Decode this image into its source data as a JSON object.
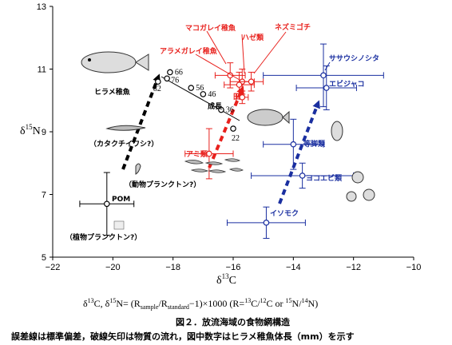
{
  "chart_data": {
    "type": "scatter",
    "title": "",
    "xlabel": "δ13C",
    "ylabel": "δ15N",
    "xlim": [
      -22,
      -10
    ],
    "ylim": [
      5,
      13
    ],
    "x_ticks": [
      "−22",
      "−20",
      "−18",
      "−16",
      "−14",
      "−12",
      "−10"
    ],
    "y_ticks": [
      "5",
      "7",
      "9",
      "11",
      "13"
    ],
    "groups": [
      {
        "color": "#000000",
        "points": [
          {
            "name": "POM",
            "x": -20.2,
            "y": 6.7,
            "xerr": 0.9,
            "yerr": 1.0
          },
          {
            "name": "82",
            "x": -18.5,
            "y": 10.6
          },
          {
            "name": "66",
            "x": -18.1,
            "y": 10.9
          },
          {
            "name": "76",
            "x": -18.2,
            "y": 10.7
          },
          {
            "name": "56",
            "x": -17.4,
            "y": 10.4
          },
          {
            "name": "46",
            "x": -17.0,
            "y": 10.2
          },
          {
            "name": "36",
            "x": -16.4,
            "y": 9.7
          },
          {
            "name": "22",
            "x": -16.0,
            "y": 9.1
          }
        ]
      },
      {
        "color": "#e8211d",
        "points": [
          {
            "name": "アミ類",
            "x": -16.8,
            "y": 8.3,
            "xerr": 0.8,
            "yerr": 0.8
          },
          {
            "name": "マコガレイ稚魚",
            "x": -16.1,
            "y": 10.8,
            "xerr": 0.5,
            "yerr": 0.4
          },
          {
            "name": "ハゼ類",
            "x": -15.7,
            "y": 10.6,
            "xerr": 0.4,
            "yerr": 0.4
          },
          {
            "name": "ネズミゴチ",
            "x": -15.4,
            "y": 10.6,
            "xerr": 0.4,
            "yerr": 0.3
          },
          {
            "name": "アラメガレイ稚魚",
            "x": -15.8,
            "y": 10.5,
            "xerr": 0.5,
            "yerr": 0.4
          },
          {
            "name": "",
            "x": -15.7,
            "y": 10.1,
            "xerr": 0.2,
            "yerr": 0.2
          }
        ]
      },
      {
        "color": "#1a2fa0",
        "points": [
          {
            "name": "ササウシノシタ",
            "x": -13.0,
            "y": 10.8,
            "xerr": 2.0,
            "yerr": 1.0
          },
          {
            "name": "エビジャコ",
            "x": -12.9,
            "y": 10.4,
            "xerr": 1.0,
            "yerr": 0.7
          },
          {
            "name": "等脚類",
            "x": -14.0,
            "y": 8.6,
            "xerr": 1.0,
            "yerr": 0.8
          },
          {
            "name": "ヨコエビ類",
            "x": -13.7,
            "y": 7.6,
            "xerr": 1.7,
            "yerr": 0.4
          },
          {
            "name": "イソモク",
            "x": -14.9,
            "y": 6.1,
            "xerr": 1.3,
            "yerr": 0.5
          }
        ]
      }
    ],
    "annotations": [
      "ヒラメ稚魚",
      "成長",
      "カタクチイワシ?",
      "動物プランクトン?",
      "植物プランクトン?"
    ]
  },
  "labels": {
    "hirame": "ヒラメ稚魚",
    "seichou": "成長",
    "katakuchi": "（カタクチイワシ?）",
    "doubutsu": "（動物プランクトン?）",
    "shokubutsu": "（植物プランクトン?）",
    "pom": "POM",
    "ami": "アミ類",
    "makogarei": "マコガレイ稚魚",
    "haze": "ハゼ類",
    "nezumigochi": "ネズミゴチ",
    "aramegarei": "アラメガレイ稚魚",
    "sasaushi": "ササウシノシタ",
    "ebijako": "エビジャコ",
    "touki": "等脚類",
    "yokoebi": "ヨコエビ類",
    "isomoku": "イソモク",
    "red_small": "田"
  },
  "caption": {
    "formula": "δ¹³C,  δ¹⁵N= (R_sample/R_standard−1)×1000 (R=¹³C/¹²C or ¹⁵N/¹⁴N)",
    "title": "図２．放流海域の食物網構造",
    "note": "誤差線は標準偏差，破線矢印は物質の流れ，図中数字はヒラメ稚魚体長（mm）を示す"
  },
  "colors": {
    "black": "#000000",
    "red": "#e8211d",
    "blue": "#1a2fa0"
  }
}
